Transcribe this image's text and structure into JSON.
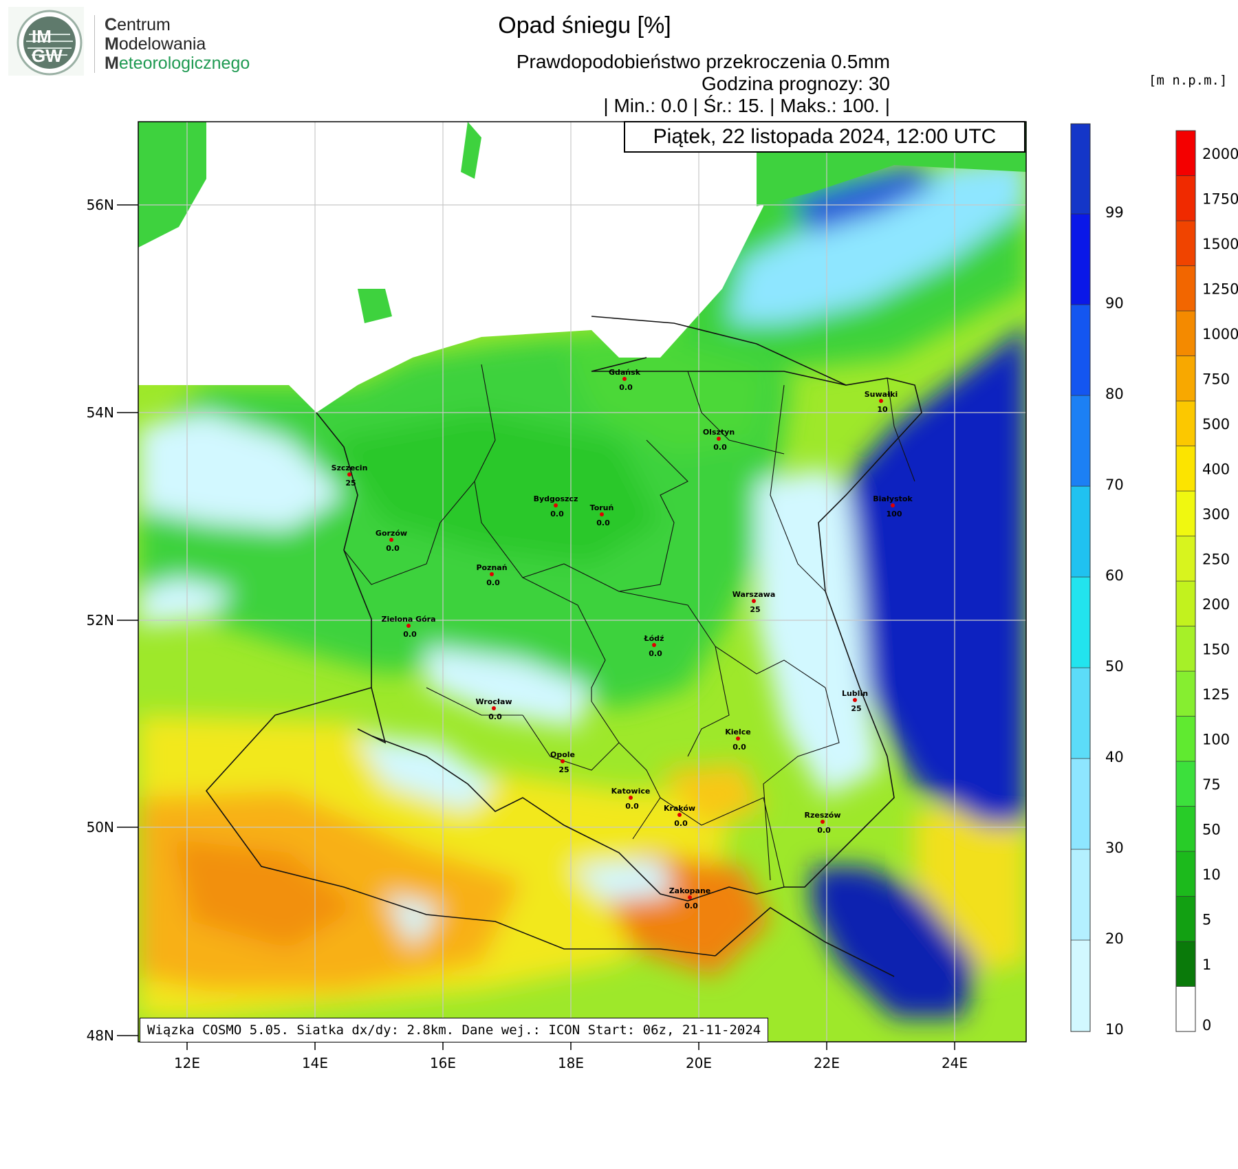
{
  "header": {
    "title": "Opad śniegu [%]",
    "subtitle": "Prawdopodobieństwo przekroczenia 0.5mm",
    "forecast_hour": "Godzina prognozy: 30",
    "stats": "| Min.:       0.0 | Śr.:       15. | Maks.:     100. |",
    "date": "Piątek, 22 listopada 2024, 12:00 UTC"
  },
  "logo": {
    "badge_top": "IM",
    "badge_bottom": "GW",
    "line1_initial": "C",
    "line1_rest": "entrum",
    "line2_initial": "M",
    "line2_rest": "odelowania",
    "line3_initial": "M",
    "line3_rest": "eteorologicznego"
  },
  "footer": "Wiązka COSMO 5.05. Siatka dx/dy: 2.8km. Dane wej.: ICON Start: 06z, 21-11-2024",
  "elevation_unit": "[m n.p.m.]",
  "chart_data": {
    "type": "heatmap",
    "title": "Opad śniegu [%]",
    "xlabel": "",
    "ylabel": "",
    "x_ticks": [
      "12E",
      "14E",
      "16E",
      "18E",
      "20E",
      "22E",
      "24E"
    ],
    "y_ticks": [
      "56N",
      "54N",
      "52N",
      "50N",
      "48N"
    ],
    "grid": true,
    "probability_legend": {
      "levels": [
        "10",
        "20",
        "30",
        "40",
        "50",
        "60",
        "70",
        "80",
        "90",
        "99"
      ],
      "colors": [
        "#d2f8ff",
        "#b4f0ff",
        "#8ee6ff",
        "#5cdcf8",
        "#22e4ee",
        "#20c2f0",
        "#1c80f4",
        "#1456f0",
        "#0a18e8",
        "#1436c8",
        "#0a20a8"
      ]
    },
    "elevation_legend": {
      "levels": [
        "0",
        "1",
        "5",
        "10",
        "50",
        "75",
        "100",
        "125",
        "150",
        "200",
        "250",
        "300",
        "400",
        "500",
        "750",
        "1000",
        "1250",
        "1500",
        "1750",
        "2000"
      ],
      "colors": [
        "#ffffff",
        "#0a7a0a",
        "#12a012",
        "#1cba1c",
        "#28cc28",
        "#3ce03c",
        "#60ea30",
        "#86ee30",
        "#a6f028",
        "#c2f21e",
        "#d8f41e",
        "#f0f810",
        "#fce400",
        "#fcc800",
        "#f8a800",
        "#f48a00",
        "#f26600",
        "#f04400",
        "#f02a00",
        "#f40000"
      ]
    },
    "stations": [
      {
        "name": "Gdańsk",
        "value": "0.0"
      },
      {
        "name": "Suwałki",
        "value": "10"
      },
      {
        "name": "Olsztyn",
        "value": "0.0"
      },
      {
        "name": "Szczecin",
        "value": "25"
      },
      {
        "name": "Bydgoszcz",
        "value": "0.0"
      },
      {
        "name": "Toruń",
        "value": "0.0"
      },
      {
        "name": "Białystok",
        "value": "100"
      },
      {
        "name": "Gorzów",
        "value": "0.0"
      },
      {
        "name": "Poznań",
        "value": "0.0"
      },
      {
        "name": "Warszawa",
        "value": "25"
      },
      {
        "name": "Zielona Góra",
        "value": "0.0"
      },
      {
        "name": "Łódź",
        "value": "0.0"
      },
      {
        "name": "Lublin",
        "value": "25"
      },
      {
        "name": "Wrocław",
        "value": "0.0"
      },
      {
        "name": "Kielce",
        "value": "0.0"
      },
      {
        "name": "Opole",
        "value": "25"
      },
      {
        "name": "Katowice",
        "value": "0.0"
      },
      {
        "name": "Kraków",
        "value": "0.0"
      },
      {
        "name": "Rzeszów",
        "value": "0.0"
      },
      {
        "name": "Zakopane",
        "value": "0.0"
      }
    ]
  }
}
